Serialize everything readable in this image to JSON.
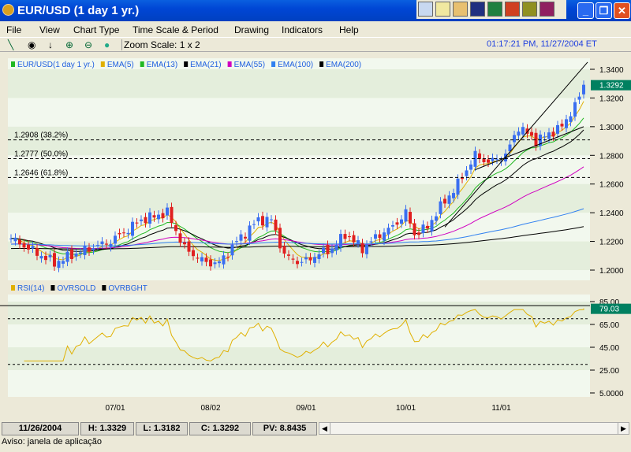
{
  "window": {
    "title": "EUR/USD (1 day  1 yr.)"
  },
  "menu": [
    "File",
    "View",
    "Chart Type",
    "Time Scale & Period",
    "Drawing",
    "Indicators",
    "Help"
  ],
  "toolbar": {
    "zoom_label": "Zoom Scale: 1 x 2",
    "clock": "01:17:21 PM, 11/27/2004 ET"
  },
  "legend_main": [
    {
      "label": "EUR/USD(1 day  1 yr.)",
      "color": "#22b822"
    },
    {
      "label": "EMA(5)",
      "color": "#e0b000"
    },
    {
      "label": "EMA(13)",
      "color": "#22b822"
    },
    {
      "label": "EMA(21)",
      "color": "#000000"
    },
    {
      "label": "EMA(55)",
      "color": "#d000c0"
    },
    {
      "label": "EMA(100)",
      "color": "#3080f0"
    },
    {
      "label": "EMA(200)",
      "color": "#000000"
    }
  ],
  "legend_rsi": [
    {
      "label": "RSI(14)",
      "color": "#e0b000"
    },
    {
      "label": "OVRSOLD",
      "color": "#000000"
    },
    {
      "label": "OVRBGHT",
      "color": "#000000"
    }
  ],
  "fib": [
    {
      "label": "1.2908 (38.2%)",
      "value": 1.2908
    },
    {
      "label": "1.2777 (50.0%)",
      "value": 1.2777
    },
    {
      "label": "1.2646 (61.8%)",
      "value": 1.2646
    }
  ],
  "chart_data": {
    "type": "candlestick",
    "price_axis": {
      "ticks": [
        "1.3400",
        "1.3200",
        "1.3000",
        "1.2800",
        "1.2600",
        "1.2400",
        "1.2200",
        "1.2000"
      ],
      "range": [
        1.195,
        1.345
      ]
    },
    "last_price": "1.3292",
    "rsi_axis": {
      "ticks": [
        "85.00",
        "65.00",
        "45.00",
        "25.00",
        "5.0000"
      ],
      "range": [
        5,
        85
      ]
    },
    "rsi_last": "79.03",
    "overbought": 70,
    "oversold": 30,
    "date_labels": [
      {
        "label": "07/01",
        "bar": 24
      },
      {
        "label": "08/02",
        "bar": 46
      },
      {
        "label": "09/01",
        "bar": 68
      },
      {
        "label": "10/01",
        "bar": 91
      },
      {
        "label": "11/01",
        "bar": 113
      }
    ],
    "close_waypoints": [
      [
        0,
        1.222
      ],
      [
        10,
        1.205
      ],
      [
        16,
        1.213
      ],
      [
        23,
        1.22
      ],
      [
        30,
        1.235
      ],
      [
        36,
        1.24
      ],
      [
        40,
        1.215
      ],
      [
        45,
        1.205
      ],
      [
        48,
        1.205
      ],
      [
        52,
        1.22
      ],
      [
        57,
        1.235
      ],
      [
        60,
        1.235
      ],
      [
        63,
        1.21
      ],
      [
        67,
        1.205
      ],
      [
        70,
        1.21
      ],
      [
        74,
        1.215
      ],
      [
        77,
        1.225
      ],
      [
        81,
        1.215
      ],
      [
        85,
        1.225
      ],
      [
        88,
        1.23
      ],
      [
        91,
        1.24
      ],
      [
        93,
        1.225
      ],
      [
        96,
        1.23
      ],
      [
        98,
        1.24
      ],
      [
        103,
        1.26
      ],
      [
        107,
        1.28
      ],
      [
        110,
        1.275
      ],
      [
        114,
        1.28
      ],
      [
        117,
        1.3
      ],
      [
        121,
        1.29
      ],
      [
        124,
        1.295
      ],
      [
        127,
        1.3
      ],
      [
        131,
        1.32
      ],
      [
        132,
        1.3292
      ]
    ]
  },
  "status": {
    "date": "11/26/2004",
    "high": "H: 1.3329",
    "low": "L: 1.3182",
    "close": "C: 1.3292",
    "pv": "PV: 8.8435",
    "message": "Aviso: janela de aplicação"
  }
}
